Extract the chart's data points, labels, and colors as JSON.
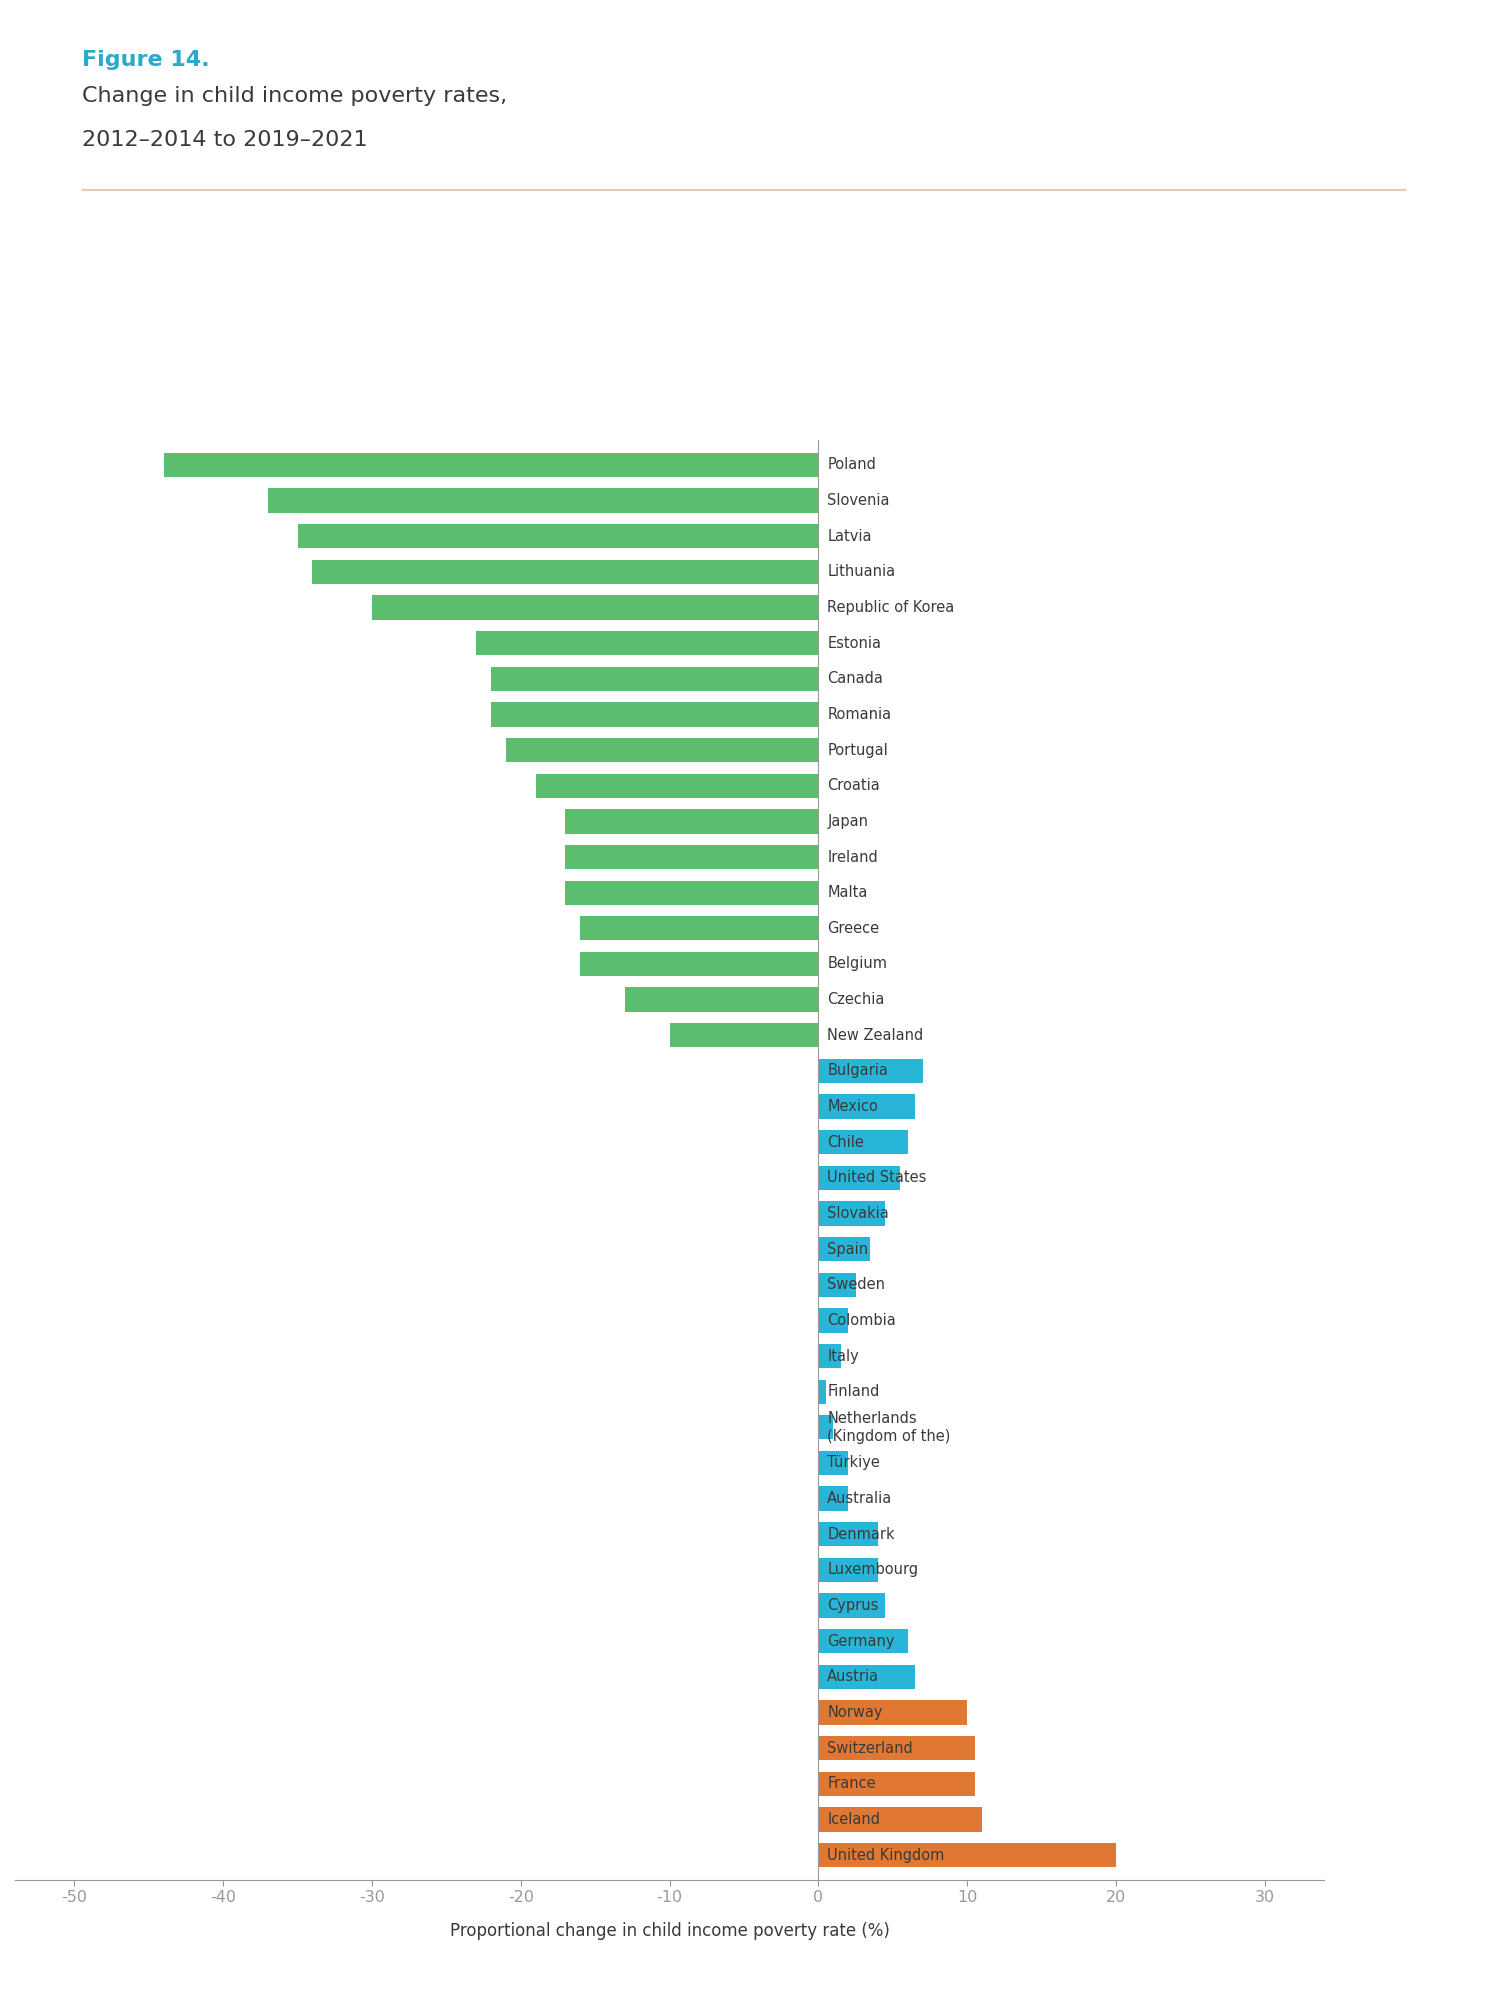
{
  "figure_label": "Figure 14.",
  "title_line1": "Change in child income poverty rates,",
  "title_line2": "2012–2014 to 2019–2021",
  "xlabel": "Proportional change in child income poverty rate (%)",
  "countries": [
    "Poland",
    "Slovenia",
    "Latvia",
    "Lithuania",
    "Republic of Korea",
    "Estonia",
    "Canada",
    "Romania",
    "Portugal",
    "Croatia",
    "Japan",
    "Ireland",
    "Malta",
    "Greece",
    "Belgium",
    "Czechia",
    "New Zealand",
    "Bulgaria",
    "Mexico",
    "Chile",
    "United States",
    "Slovakia",
    "Spain",
    "Sweden",
    "Colombia",
    "Italy",
    "Finland",
    "Netherlands\n(Kingdom of the)",
    "Türkiye",
    "Australia",
    "Denmark",
    "Luxembourg",
    "Cyprus",
    "Germany",
    "Austria",
    "Norway",
    "Switzerland",
    "France",
    "Iceland",
    "United Kingdom"
  ],
  "values": [
    -44,
    -37,
    -35,
    -34,
    -30,
    -23,
    -22,
    -22,
    -21,
    -19,
    -17,
    -17,
    -17,
    -16,
    -16,
    -13,
    -10,
    7,
    6.5,
    6,
    5.5,
    4.5,
    3.5,
    2.5,
    2,
    1.5,
    0.5,
    1,
    2,
    2,
    4,
    4,
    4.5,
    6,
    6.5,
    10,
    10.5,
    10.5,
    11,
    20
  ],
  "colors": {
    "green": "#5BBD6E",
    "blue": "#29B5D8",
    "orange": "#E07833",
    "figure_label_color": "#29AACC",
    "separator_color": "#E8C9B8",
    "background": "#FFFFFF",
    "text_color": "#3A3A3A",
    "axis_color": "#999999"
  },
  "color_assignments": [
    "green",
    "green",
    "green",
    "green",
    "green",
    "green",
    "green",
    "green",
    "green",
    "green",
    "green",
    "green",
    "green",
    "green",
    "green",
    "green",
    "green",
    "blue",
    "blue",
    "blue",
    "blue",
    "blue",
    "blue",
    "blue",
    "blue",
    "blue",
    "blue",
    "blue",
    "blue",
    "blue",
    "blue",
    "blue",
    "blue",
    "blue",
    "blue",
    "orange",
    "orange",
    "orange",
    "orange",
    "orange"
  ],
  "xlim": [
    -54,
    34
  ],
  "xticks": [
    -50,
    -40,
    -30,
    -20,
    -10,
    0,
    10,
    20,
    30
  ],
  "bar_height": 0.68,
  "figsize": [
    14.88,
    20.0
  ],
  "dpi": 100
}
